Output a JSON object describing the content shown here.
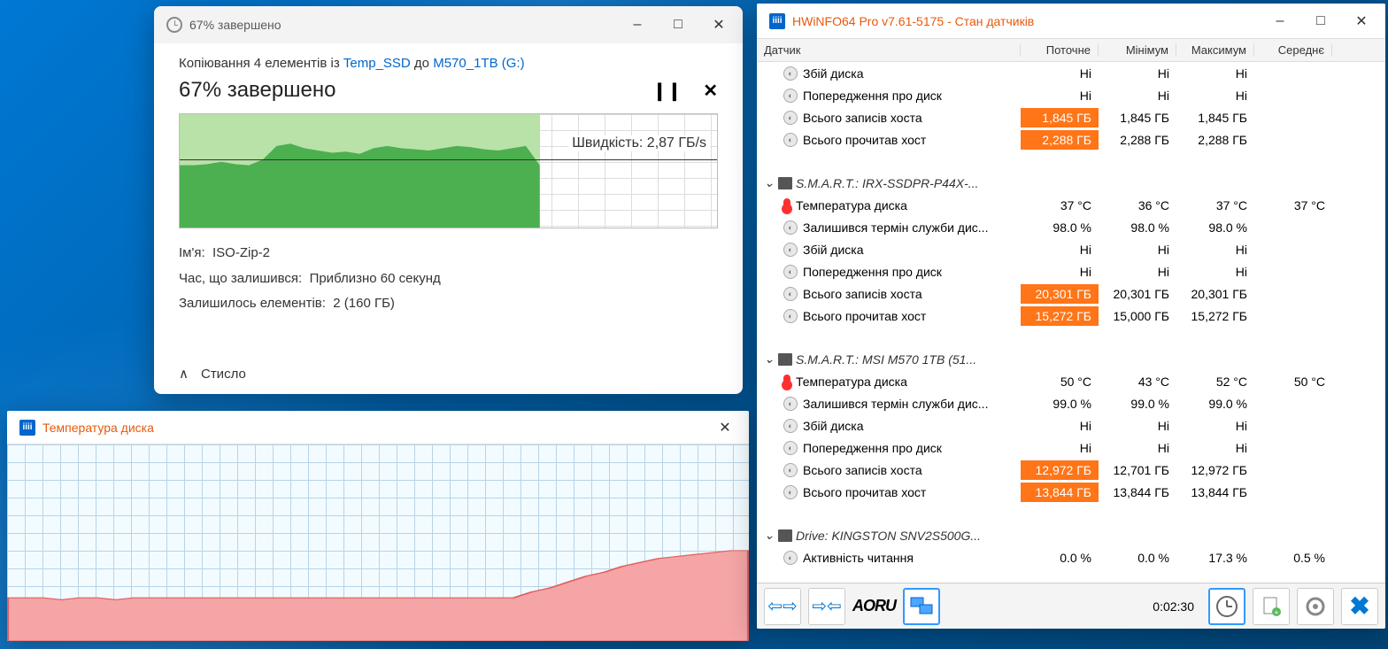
{
  "copy": {
    "title_prefix": "67% завершено",
    "line1_prefix": "Копіювання 4 елементів із ",
    "source_link": "Temp_SSD",
    "line1_mid": " до ",
    "dest_link": "M570_1TB (G:)",
    "progress_text": "67% завершено",
    "speed_label": "Швидкість: 2,87 ГБ/s",
    "name_label": "Ім'я:",
    "name_value": "ISO-Zip-2",
    "time_label": "Час, що залишився:",
    "time_value": "Приблизно 60 секунд",
    "items_label": "Залишилось елементів:",
    "items_value": "2 (160 ГБ)",
    "expand_label": "Стисло",
    "chart": {
      "progress_pct": 67,
      "light_color": "#b8e2a8",
      "dark_color": "#4caf50",
      "grid_color": "#dddddd",
      "speed_line_pct": 40,
      "profile": [
        55,
        55,
        56,
        58,
        56,
        55,
        60,
        72,
        74,
        70,
        68,
        66,
        67,
        65,
        70,
        72,
        70,
        69,
        68,
        70,
        72,
        71,
        69,
        68,
        70,
        72,
        55
      ]
    }
  },
  "temp": {
    "title": "Температура диска",
    "chart": {
      "bg_color": "#f2fbff",
      "grid_color": "#b8d4e8",
      "fill_color": "#f5a5a5",
      "border_color": "#e06060",
      "profile_pct": [
        22,
        22,
        22,
        21,
        22,
        22,
        21,
        22,
        22,
        22,
        22,
        22,
        22,
        22,
        22,
        22,
        22,
        22,
        22,
        22,
        22,
        22,
        22,
        22,
        22,
        22,
        22,
        22,
        22,
        25,
        27,
        30,
        33,
        35,
        38,
        40,
        42,
        43,
        44,
        45,
        46,
        46
      ]
    }
  },
  "hwinfo": {
    "title": "HWiNFO64 Pro v7.61-5175 - Стан датчиків",
    "columns": {
      "sensor": "Датчик",
      "current": "Поточне",
      "min": "Мінімум",
      "max": "Максимум",
      "avg": "Середнє"
    },
    "timer": "0:02:30",
    "aorus": "AORU",
    "highlight_color": "#ff7518",
    "groups": [
      {
        "rows": [
          {
            "icon": "round",
            "label": "Збій диска",
            "c": "Ні",
            "mn": "Ні",
            "mx": "Ні",
            "av": ""
          },
          {
            "icon": "round",
            "label": "Попередження про диск",
            "c": "Ні",
            "mn": "Ні",
            "mx": "Ні",
            "av": ""
          },
          {
            "icon": "round",
            "label": "Всього записів хоста",
            "c": "1,845 ГБ",
            "mn": "1,845 ГБ",
            "mx": "1,845 ГБ",
            "av": "",
            "hl": true
          },
          {
            "icon": "round",
            "label": "Всього прочитав хост",
            "c": "2,288 ГБ",
            "mn": "2,288 ГБ",
            "mx": "2,288 ГБ",
            "av": "",
            "hl": true
          }
        ]
      },
      {
        "header": "S.M.A.R.T.: IRX-SSDPR-P44X-...",
        "rows": [
          {
            "icon": "therm",
            "label": "Температура диска",
            "c": "37 °C",
            "mn": "36 °C",
            "mx": "37 °C",
            "av": "37 °C"
          },
          {
            "icon": "round",
            "label": "Залишився термін служби дис...",
            "c": "98.0 %",
            "mn": "98.0 %",
            "mx": "98.0 %",
            "av": ""
          },
          {
            "icon": "round",
            "label": "Збій диска",
            "c": "Ні",
            "mn": "Ні",
            "mx": "Ні",
            "av": ""
          },
          {
            "icon": "round",
            "label": "Попередження про диск",
            "c": "Ні",
            "mn": "Ні",
            "mx": "Ні",
            "av": ""
          },
          {
            "icon": "round",
            "label": "Всього записів хоста",
            "c": "20,301 ГБ",
            "mn": "20,301 ГБ",
            "mx": "20,301 ГБ",
            "av": "",
            "hl": true
          },
          {
            "icon": "round",
            "label": "Всього прочитав хост",
            "c": "15,272 ГБ",
            "mn": "15,000 ГБ",
            "mx": "15,272 ГБ",
            "av": "",
            "hl": true
          }
        ]
      },
      {
        "header": "S.M.A.R.T.: MSI M570 1TB (51...",
        "rows": [
          {
            "icon": "therm",
            "label": "Температура диска",
            "c": "50 °C",
            "mn": "43 °C",
            "mx": "52 °C",
            "av": "50 °C"
          },
          {
            "icon": "round",
            "label": "Залишився термін служби дис...",
            "c": "99.0 %",
            "mn": "99.0 %",
            "mx": "99.0 %",
            "av": ""
          },
          {
            "icon": "round",
            "label": "Збій диска",
            "c": "Ні",
            "mn": "Ні",
            "mx": "Ні",
            "av": ""
          },
          {
            "icon": "round",
            "label": "Попередження про диск",
            "c": "Ні",
            "mn": "Ні",
            "mx": "Ні",
            "av": ""
          },
          {
            "icon": "round",
            "label": "Всього записів хоста",
            "c": "12,972 ГБ",
            "mn": "12,701 ГБ",
            "mx": "12,972 ГБ",
            "av": "",
            "hl": true
          },
          {
            "icon": "round",
            "label": "Всього прочитав хост",
            "c": "13,844 ГБ",
            "mn": "13,844 ГБ",
            "mx": "13,844 ГБ",
            "av": "",
            "hl": true
          }
        ]
      },
      {
        "header": "Drive: KINGSTON SNV2S500G...",
        "rows": [
          {
            "icon": "round",
            "label": "Активність читання",
            "c": "0.0 %",
            "mn": "0.0 %",
            "mx": "17.3 %",
            "av": "0.5 %"
          }
        ]
      }
    ]
  }
}
